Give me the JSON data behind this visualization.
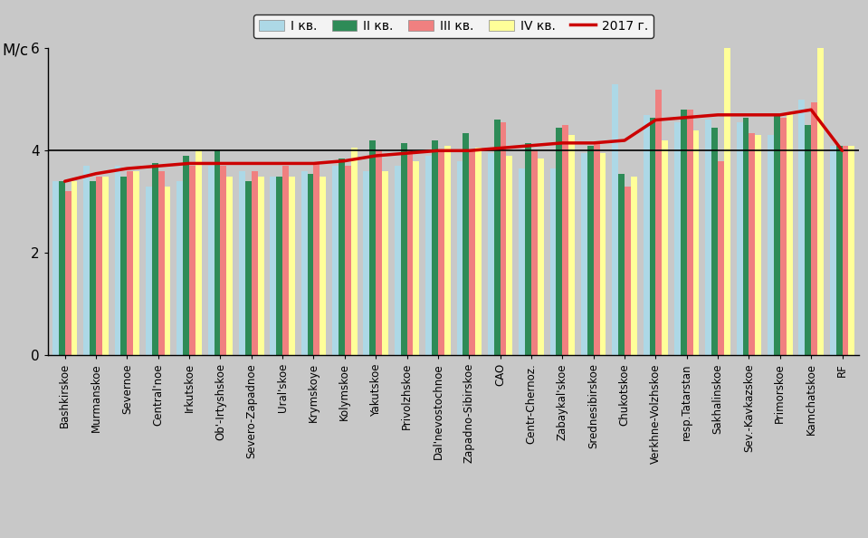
{
  "categories": [
    "Bashkirskoe",
    "Murmanskoe",
    "Severnoe",
    "Central'noe",
    "Irkutskoe",
    "Ob'-Irtyshskoe",
    "Severo-Zapadnoe",
    "Ural'skoe",
    "Krymskoye",
    "Kolymskoe",
    "Yakutskoe",
    "Privolzhskoe",
    "Dal'nevostochnoe",
    "Zapadno-Sibirskoe",
    "CAO",
    "Centr-Chernoz.",
    "Zabaykal'skoe",
    "Srednesibirskoe",
    "Chukotskoe",
    "Verkhne-Volzhskoe",
    "resp.Tatarstan",
    "Sakhalinskoe",
    "Sev.-Kavkazskoe",
    "Primorskoe",
    "Kamchatskoe",
    "RF"
  ],
  "q1": [
    3.4,
    3.7,
    3.7,
    3.3,
    3.4,
    3.7,
    3.6,
    3.5,
    3.6,
    3.7,
    3.6,
    3.7,
    3.9,
    3.8,
    3.95,
    3.65,
    3.65,
    3.95,
    5.3,
    4.7,
    4.55,
    4.6,
    4.55,
    4.3,
    5.0,
    4.1
  ],
  "q2": [
    3.4,
    3.4,
    3.5,
    3.75,
    3.9,
    4.0,
    3.4,
    3.5,
    3.55,
    3.85,
    4.2,
    4.15,
    4.2,
    4.35,
    4.6,
    4.15,
    4.45,
    4.1,
    3.55,
    4.65,
    4.8,
    4.45,
    4.65,
    4.7,
    4.5,
    4.1
  ],
  "q3": [
    3.2,
    3.5,
    3.6,
    3.6,
    3.7,
    3.7,
    3.6,
    3.7,
    3.75,
    3.7,
    4.0,
    4.0,
    4.0,
    4.0,
    4.55,
    4.0,
    4.5,
    4.15,
    3.3,
    5.2,
    4.8,
    3.8,
    4.35,
    4.65,
    4.95,
    4.1
  ],
  "q4": [
    3.4,
    3.5,
    3.6,
    3.3,
    4.0,
    3.5,
    3.5,
    3.5,
    3.5,
    4.05,
    3.6,
    3.8,
    4.1,
    4.05,
    3.9,
    3.85,
    4.3,
    3.95,
    3.5,
    4.2,
    4.4,
    6.3,
    4.3,
    4.75,
    6.4,
    4.1
  ],
  "line2017": [
    3.4,
    3.55,
    3.65,
    3.7,
    3.75,
    3.75,
    3.75,
    3.75,
    3.75,
    3.8,
    3.9,
    3.95,
    4.0,
    4.0,
    4.05,
    4.1,
    4.15,
    4.15,
    4.2,
    4.6,
    4.65,
    4.7,
    4.7,
    4.7,
    4.8,
    4.0
  ],
  "bar_colors": [
    "#ADD8E6",
    "#2E8B57",
    "#F08080",
    "#FFFF99"
  ],
  "line_color": "#CC0000",
  "ylabel": "М/с",
  "ylim": [
    0,
    6
  ],
  "yticks": [
    0,
    2,
    4,
    6
  ],
  "legend_labels": [
    "I кв.",
    "II кв.",
    "III кв.",
    "IV кв.",
    "2017 г."
  ],
  "bg_color": "#C8C8C8",
  "border_color": "#000000"
}
